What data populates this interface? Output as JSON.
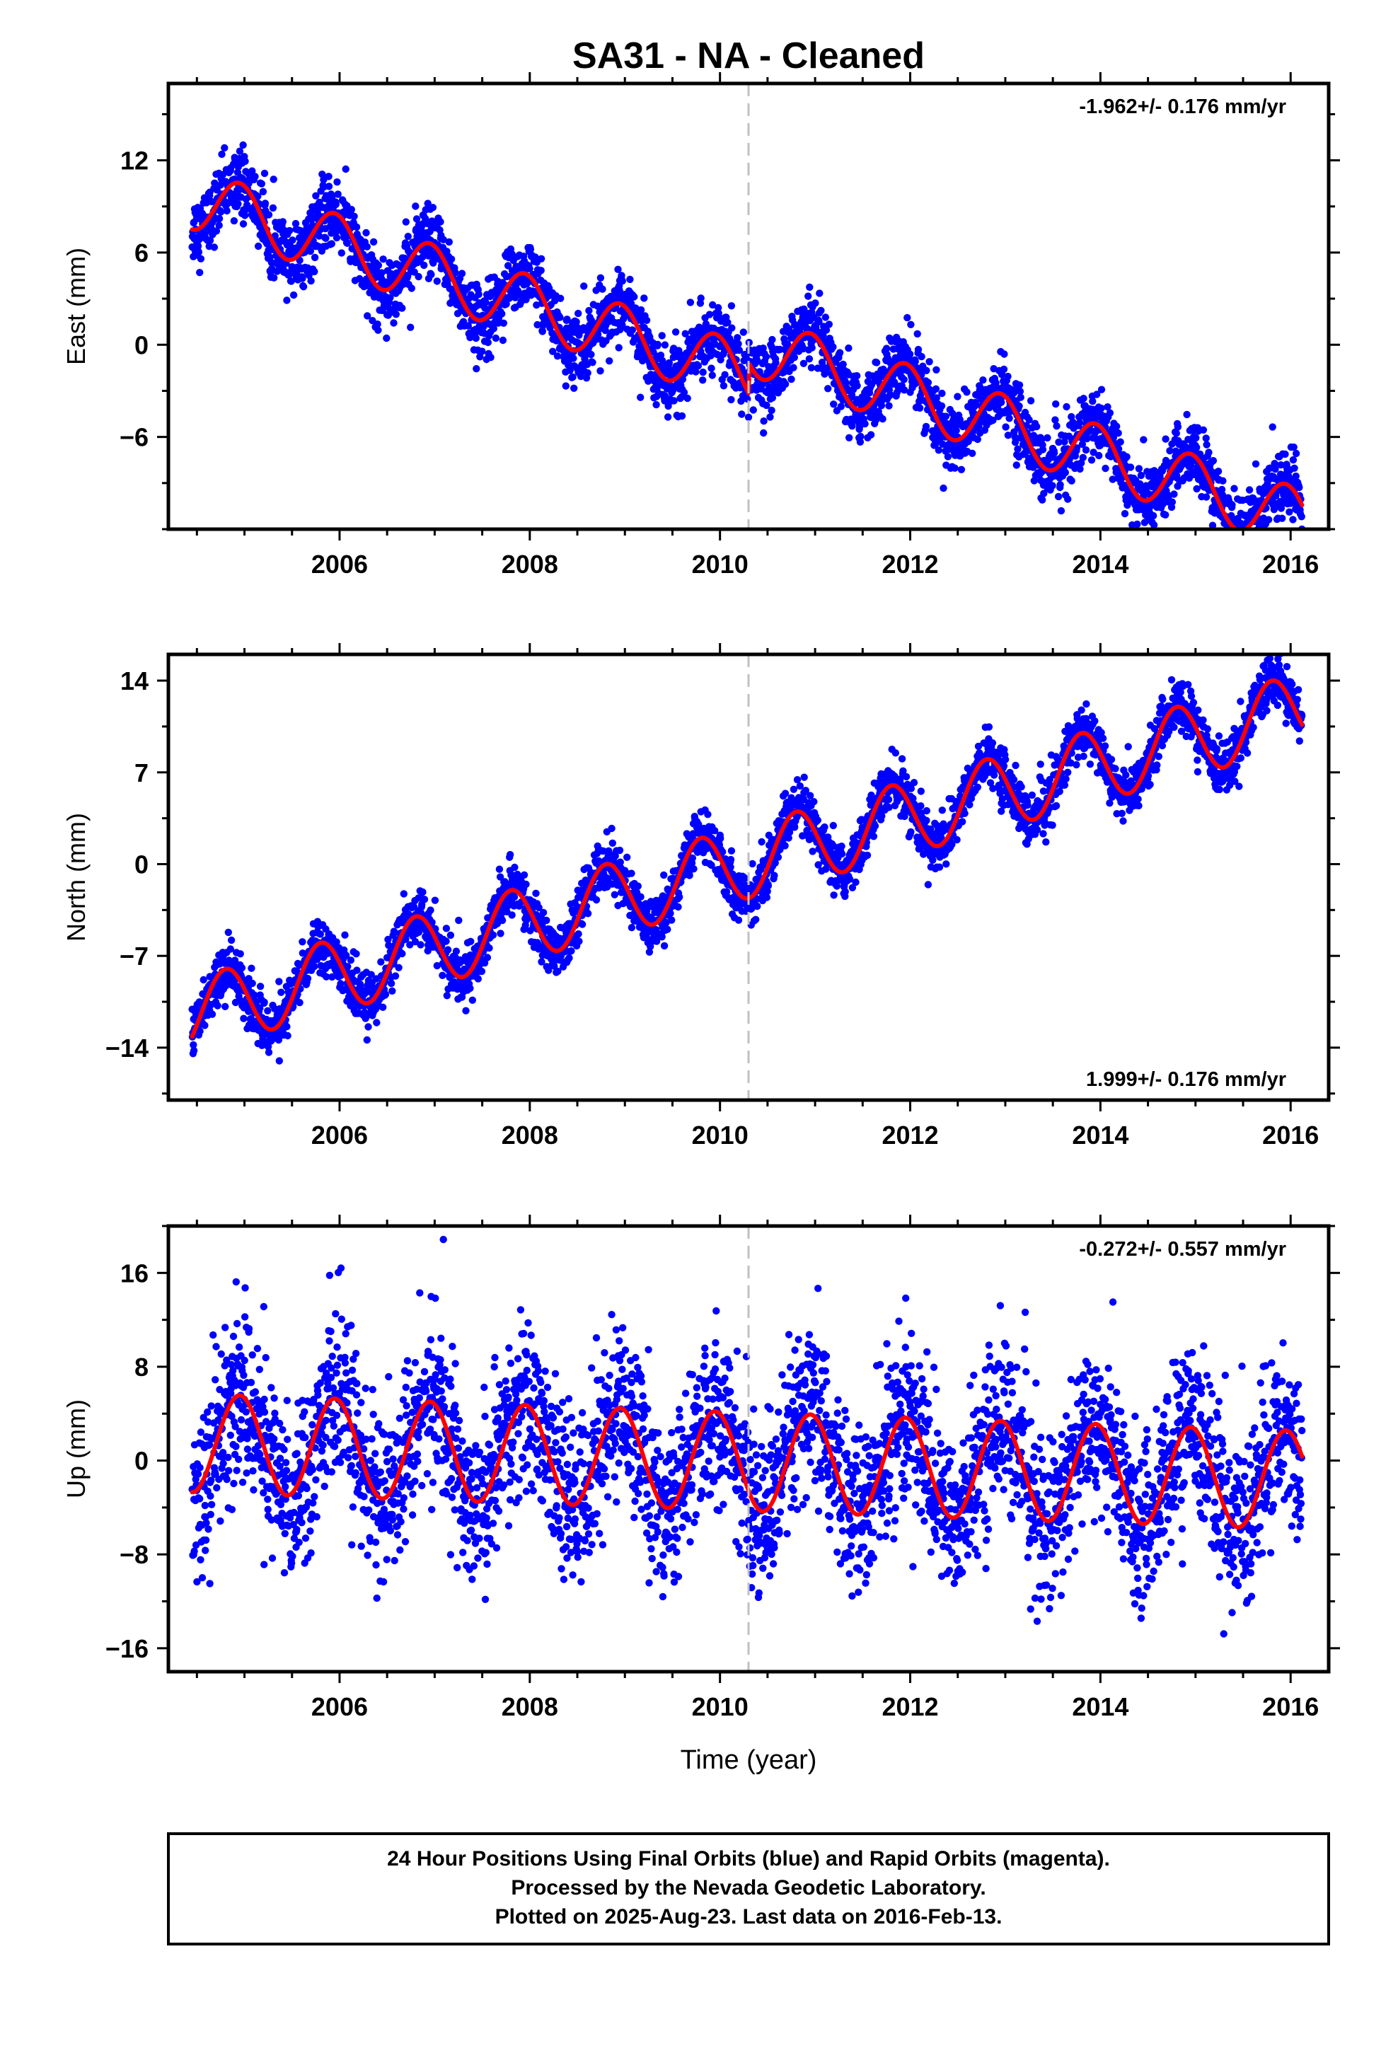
{
  "title": "SA31  - NA - Cleaned",
  "xlabel": "Time (year)",
  "footer": {
    "line1": "24 Hour Positions Using Final Orbits (blue) and Rapid Orbits (magenta).",
    "line2": "Processed by the Nevada Geodetic Laboratory.",
    "line3": "Plotted on 2025-Aug-23. Last data on 2016-Feb-13."
  },
  "colors": {
    "final_orbits": "#0000ff",
    "model_fit": "#ff0000",
    "event_line": "#c0c0c0",
    "frame": "#000000"
  },
  "chart_data": [
    {
      "type": "scatter",
      "panel": "east",
      "ylabel": "East (mm)",
      "rate_text": "-1.962+/- 0.176 mm/yr",
      "rate_position": "top-right",
      "xlim": [
        2004.2,
        2016.4
      ],
      "ylim": [
        -12,
        17
      ],
      "xticks": [
        2006,
        2008,
        2010,
        2012,
        2014,
        2016
      ],
      "yticks": [
        -6,
        0,
        6,
        12
      ],
      "event_line_x": 2010.3,
      "grid": false,
      "series": [
        {
          "type": "scatter",
          "values_desc": "daily positions",
          "trend": -1.962,
          "offset": 9.5,
          "annual_amp": 2.0,
          "annual_phase": 0.7,
          "scatter_sd": 1.1
        },
        {
          "type": "line",
          "values_desc": "model fit",
          "trend": -1.962,
          "offset": 9.5,
          "annual_amp": 2.0,
          "annual_phase": 0.7
        }
      ],
      "x_start": 2004.45,
      "x_end": 2016.12,
      "offset_at_event": 2.0
    },
    {
      "type": "scatter",
      "panel": "north",
      "ylabel": "North (mm)",
      "rate_text": "1.999+/- 0.176 mm/yr",
      "rate_position": "bottom-right",
      "xlim": [
        2004.2,
        2016.4
      ],
      "ylim": [
        -18,
        16
      ],
      "xticks": [
        2006,
        2008,
        2010,
        2012,
        2014,
        2016
      ],
      "yticks": [
        -14,
        -7,
        0,
        7,
        14
      ],
      "event_line_x": 2010.3,
      "grid": false,
      "series": [
        {
          "type": "scatter",
          "values_desc": "daily positions",
          "trend": 1.999,
          "offset": -11.5,
          "annual_amp": 2.8,
          "annual_phase": 0.55,
          "scatter_sd": 1.0
        },
        {
          "type": "line",
          "values_desc": "model fit",
          "trend": 1.999,
          "offset": -11.5,
          "annual_amp": 2.8,
          "annual_phase": 0.55
        }
      ],
      "x_start": 2004.45,
      "x_end": 2016.12,
      "offset_at_event": 0
    },
    {
      "type": "scatter",
      "panel": "up",
      "ylabel": "Up (mm)",
      "rate_text": "-0.272+/- 0.557 mm/yr",
      "rate_position": "top-right",
      "xlim": [
        2004.2,
        2016.4
      ],
      "ylim": [
        -18,
        20
      ],
      "xticks": [
        2006,
        2008,
        2010,
        2012,
        2014,
        2016
      ],
      "yticks": [
        -16,
        -8,
        0,
        8,
        16
      ],
      "event_line_x": 2010.3,
      "grid": false,
      "series": [
        {
          "type": "scatter",
          "values_desc": "daily positions",
          "trend": -0.272,
          "offset": 1.5,
          "annual_amp": 4.2,
          "annual_phase": 0.7,
          "scatter_sd": 3.6
        },
        {
          "type": "line",
          "values_desc": "model fit",
          "trend": -0.272,
          "offset": 1.5,
          "annual_amp": 4.2,
          "annual_phase": 0.7
        }
      ],
      "x_start": 2004.45,
      "x_end": 2016.12,
      "offset_at_event": 0
    }
  ]
}
